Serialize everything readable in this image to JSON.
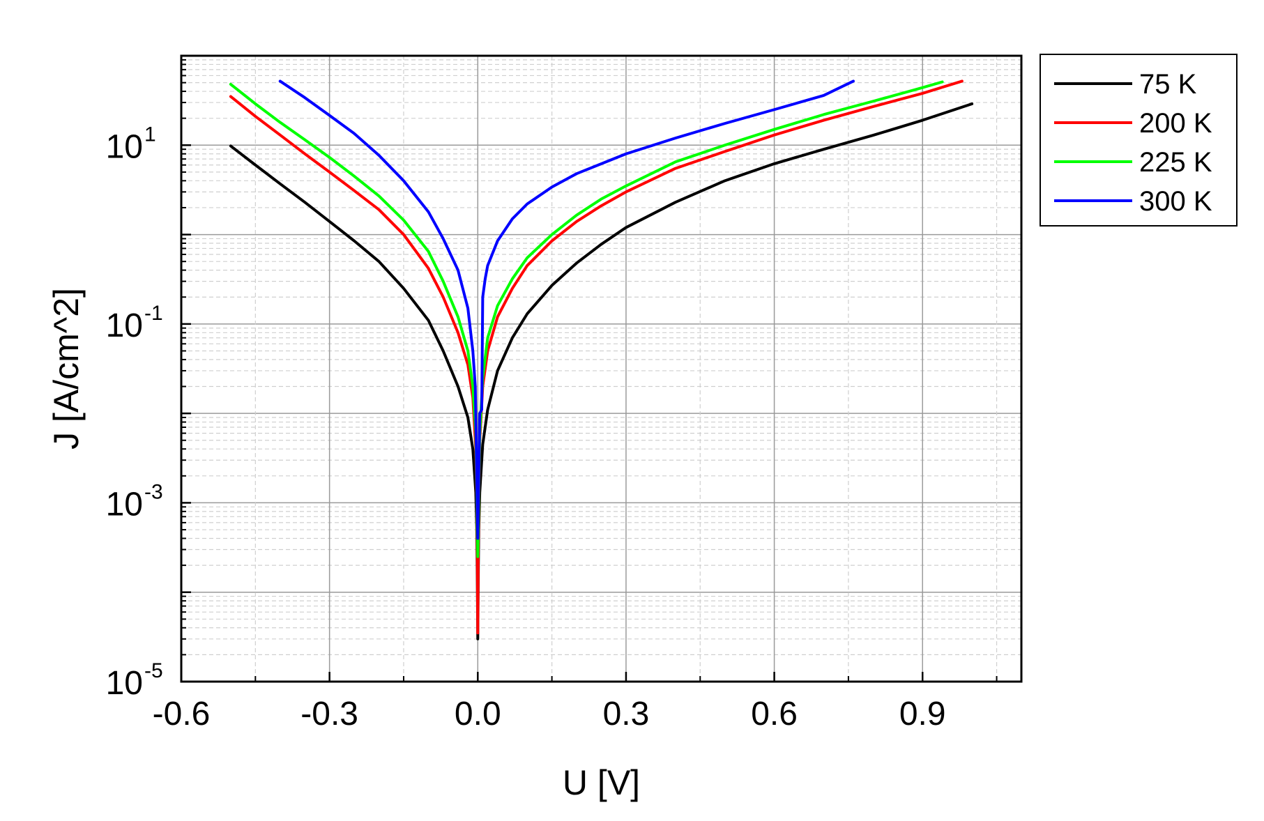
{
  "chart_data": {
    "type": "line",
    "xlabel": "U [V]",
    "ylabel": "J [A/cm^2]",
    "xlim": [
      -0.6,
      1.1
    ],
    "ylim": [
      1e-05,
      100
    ],
    "yscale": "log",
    "grid": true,
    "legend_placement": "outside-top-right",
    "x_ticks": [
      {
        "value": -0.6,
        "label": "-0.6"
      },
      {
        "value": -0.3,
        "label": "-0.3"
      },
      {
        "value": 0.0,
        "label": "0.0"
      },
      {
        "value": 0.3,
        "label": "0.3"
      },
      {
        "value": 0.6,
        "label": "0.6"
      },
      {
        "value": 0.9,
        "label": "0.9"
      }
    ],
    "y_ticks": [
      {
        "value": 10,
        "base": "10",
        "exp": "1"
      },
      {
        "value": 0.1,
        "base": "10",
        "exp": "-1"
      },
      {
        "value": 0.001,
        "base": "10",
        "exp": "-3"
      },
      {
        "value": 1e-05,
        "base": "10",
        "exp": "-5"
      }
    ],
    "series": [
      {
        "name": "75 K",
        "color": "#000000",
        "points": [
          [
            -0.5,
            9.8
          ],
          [
            -0.45,
            6.0
          ],
          [
            -0.4,
            3.7
          ],
          [
            -0.35,
            2.3
          ],
          [
            -0.3,
            1.4
          ],
          [
            -0.25,
            0.85
          ],
          [
            -0.2,
            0.5
          ],
          [
            -0.15,
            0.25
          ],
          [
            -0.1,
            0.11
          ],
          [
            -0.07,
            0.05
          ],
          [
            -0.04,
            0.02
          ],
          [
            -0.02,
            0.009
          ],
          [
            -0.01,
            0.004
          ],
          [
            -0.004,
            0.0013
          ],
          [
            -0.002,
            0.0005
          ],
          [
            -0.001,
            0.00015
          ],
          [
            0.0,
            3e-05
          ],
          [
            0.001,
            0.00015
          ],
          [
            0.002,
            0.0005
          ],
          [
            0.004,
            0.0013
          ],
          [
            0.01,
            0.0045
          ],
          [
            0.02,
            0.011
          ],
          [
            0.04,
            0.03
          ],
          [
            0.07,
            0.07
          ],
          [
            0.1,
            0.13
          ],
          [
            0.15,
            0.27
          ],
          [
            0.2,
            0.48
          ],
          [
            0.25,
            0.78
          ],
          [
            0.3,
            1.2
          ],
          [
            0.4,
            2.3
          ],
          [
            0.5,
            4.0
          ],
          [
            0.6,
            6.2
          ],
          [
            0.7,
            9.0
          ],
          [
            0.8,
            12.9
          ],
          [
            0.9,
            19.0
          ],
          [
            1.0,
            29.0
          ]
        ]
      },
      {
        "name": "200 K",
        "color": "#ff0000",
        "points": [
          [
            -0.5,
            35.0
          ],
          [
            -0.45,
            21.0
          ],
          [
            -0.4,
            13.0
          ],
          [
            -0.35,
            8.0
          ],
          [
            -0.3,
            5.0
          ],
          [
            -0.25,
            3.1
          ],
          [
            -0.2,
            1.9
          ],
          [
            -0.15,
            1.0
          ],
          [
            -0.1,
            0.42
          ],
          [
            -0.07,
            0.2
          ],
          [
            -0.04,
            0.08
          ],
          [
            -0.02,
            0.035
          ],
          [
            -0.01,
            0.015
          ],
          [
            -0.004,
            0.004
          ],
          [
            -0.002,
            0.0012
          ],
          [
            -0.001,
            0.0003
          ],
          [
            0.0,
            3.5e-05
          ],
          [
            0.001,
            0.0003
          ],
          [
            0.002,
            0.0012
          ],
          [
            0.004,
            0.005
          ],
          [
            0.01,
            0.02
          ],
          [
            0.02,
            0.05
          ],
          [
            0.04,
            0.12
          ],
          [
            0.07,
            0.25
          ],
          [
            0.1,
            0.45
          ],
          [
            0.15,
            0.85
          ],
          [
            0.2,
            1.4
          ],
          [
            0.25,
            2.1
          ],
          [
            0.3,
            3.0
          ],
          [
            0.4,
            5.5
          ],
          [
            0.5,
            8.5
          ],
          [
            0.6,
            13.0
          ],
          [
            0.7,
            19.0
          ],
          [
            0.8,
            27.0
          ],
          [
            0.9,
            38.0
          ],
          [
            0.98,
            52.0
          ]
        ]
      },
      {
        "name": "225 K",
        "color": "#00ff00",
        "points": [
          [
            -0.5,
            48.0
          ],
          [
            -0.45,
            29.0
          ],
          [
            -0.4,
            18.0
          ],
          [
            -0.35,
            11.5
          ],
          [
            -0.3,
            7.3
          ],
          [
            -0.25,
            4.5
          ],
          [
            -0.2,
            2.7
          ],
          [
            -0.15,
            1.45
          ],
          [
            -0.1,
            0.65
          ],
          [
            -0.07,
            0.3
          ],
          [
            -0.04,
            0.12
          ],
          [
            -0.02,
            0.05
          ],
          [
            -0.01,
            0.02
          ],
          [
            -0.004,
            0.006
          ],
          [
            -0.002,
            0.0015
          ],
          [
            -0.001,
            0.0005
          ],
          [
            0.0,
            0.00025
          ],
          [
            0.001,
            0.0005
          ],
          [
            0.002,
            0.0015
          ],
          [
            0.004,
            0.006
          ],
          [
            0.01,
            0.025
          ],
          [
            0.02,
            0.07
          ],
          [
            0.04,
            0.16
          ],
          [
            0.07,
            0.32
          ],
          [
            0.1,
            0.55
          ],
          [
            0.15,
            1.0
          ],
          [
            0.2,
            1.65
          ],
          [
            0.25,
            2.5
          ],
          [
            0.3,
            3.5
          ],
          [
            0.4,
            6.5
          ],
          [
            0.5,
            10.0
          ],
          [
            0.6,
            15.0
          ],
          [
            0.7,
            22.0
          ],
          [
            0.8,
            31.0
          ],
          [
            0.9,
            44.0
          ],
          [
            0.94,
            51.0
          ]
        ]
      },
      {
        "name": "300 K",
        "color": "#0000ff",
        "points": [
          [
            -0.4,
            52.0
          ],
          [
            -0.35,
            34.0
          ],
          [
            -0.3,
            21.5
          ],
          [
            -0.25,
            13.5
          ],
          [
            -0.2,
            7.7
          ],
          [
            -0.15,
            4.0
          ],
          [
            -0.1,
            1.8
          ],
          [
            -0.07,
            0.9
          ],
          [
            -0.04,
            0.4
          ],
          [
            -0.02,
            0.15
          ],
          [
            -0.01,
            0.05
          ],
          [
            -0.005,
            0.02
          ],
          [
            0.0,
            0.0004
          ],
          [
            0.004,
            0.01
          ],
          [
            0.008,
            0.011
          ],
          [
            0.01,
            0.2
          ],
          [
            0.015,
            0.32
          ],
          [
            0.02,
            0.45
          ],
          [
            0.04,
            0.85
          ],
          [
            0.07,
            1.5
          ],
          [
            0.1,
            2.2
          ],
          [
            0.15,
            3.4
          ],
          [
            0.2,
            4.8
          ],
          [
            0.3,
            8.0
          ],
          [
            0.4,
            12.0
          ],
          [
            0.5,
            17.5
          ],
          [
            0.6,
            25.0
          ],
          [
            0.7,
            36.0
          ],
          [
            0.76,
            52.0
          ]
        ]
      }
    ]
  }
}
